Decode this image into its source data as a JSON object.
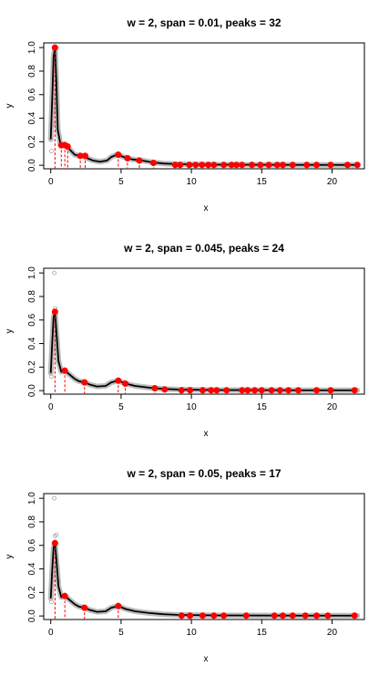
{
  "chart_data": [
    {
      "type": "scatter",
      "title": "w = 2, span = 0.01, peaks = 32",
      "xlabel": "x",
      "ylabel": "y",
      "xlim": [
        -0.5,
        22.3
      ],
      "ylim": [
        -0.03,
        1.04
      ],
      "xticks": [
        0,
        5,
        10,
        15,
        20
      ],
      "yticks": [
        0.0,
        0.2,
        0.4,
        0.6,
        0.8,
        1.0
      ],
      "ytick_labels": [
        "0.0",
        "0.2",
        "0.4",
        "0.6",
        "0.8",
        "1.0"
      ],
      "grid": false,
      "legend": "none",
      "colors": {
        "raw": "#a6a6a6",
        "smooth": "#000000",
        "peaks": "#ff0000"
      },
      "raw_outliers": [
        [
          0.05,
          0.12
        ],
        [
          0.15,
          0.35
        ],
        [
          0.22,
          0.55
        ],
        [
          0.3,
          0.7
        ],
        [
          0.38,
          0.45
        ],
        [
          0.45,
          0.3
        ]
      ],
      "smooth": [
        [
          0.0,
          0.22
        ],
        [
          0.1,
          0.55
        ],
        [
          0.2,
          0.92
        ],
        [
          0.3,
          1.0
        ],
        [
          0.4,
          0.7
        ],
        [
          0.5,
          0.3
        ],
        [
          0.7,
          0.17
        ],
        [
          1.0,
          0.18
        ],
        [
          1.3,
          0.14
        ],
        [
          1.7,
          0.09
        ],
        [
          2.0,
          0.08
        ],
        [
          2.3,
          0.08
        ],
        [
          2.6,
          0.06
        ],
        [
          3.0,
          0.04
        ],
        [
          3.5,
          0.03
        ],
        [
          4.0,
          0.04
        ],
        [
          4.3,
          0.07
        ],
        [
          4.7,
          0.09
        ],
        [
          5.2,
          0.07
        ],
        [
          5.8,
          0.05
        ],
        [
          6.5,
          0.04
        ],
        [
          7.2,
          0.025
        ],
        [
          8.0,
          0.015
        ],
        [
          9.0,
          0.01
        ],
        [
          10.0,
          0.008
        ],
        [
          12.0,
          0.005
        ],
        [
          15.0,
          0.004
        ],
        [
          18.0,
          0.003
        ],
        [
          21.8,
          0.003
        ]
      ],
      "peaks": [
        [
          0.3,
          1.0
        ],
        [
          0.75,
          0.17
        ],
        [
          1.0,
          0.17
        ],
        [
          1.2,
          0.16
        ],
        [
          2.1,
          0.08
        ],
        [
          2.45,
          0.08
        ],
        [
          4.8,
          0.09
        ],
        [
          5.45,
          0.06
        ],
        [
          6.3,
          0.04
        ],
        [
          7.3,
          0.02
        ],
        [
          8.85,
          0.003
        ],
        [
          9.2,
          0.003
        ],
        [
          9.85,
          0.003
        ],
        [
          10.3,
          0.003
        ],
        [
          10.75,
          0.003
        ],
        [
          11.2,
          0.003
        ],
        [
          11.6,
          0.003
        ],
        [
          12.3,
          0.003
        ],
        [
          12.85,
          0.003
        ],
        [
          13.2,
          0.003
        ],
        [
          13.6,
          0.003
        ],
        [
          14.3,
          0.003
        ],
        [
          14.9,
          0.003
        ],
        [
          15.5,
          0.003
        ],
        [
          16.1,
          0.003
        ],
        [
          16.5,
          0.003
        ],
        [
          17.2,
          0.003
        ],
        [
          18.2,
          0.003
        ],
        [
          18.9,
          0.003
        ],
        [
          19.9,
          0.003
        ],
        [
          21.1,
          0.003
        ],
        [
          21.8,
          0.003
        ]
      ]
    },
    {
      "type": "scatter",
      "title": "w = 2, span = 0.045, peaks = 24",
      "xlabel": "x",
      "ylabel": "y",
      "xlim": [
        -0.5,
        22.3
      ],
      "ylim": [
        -0.03,
        1.04
      ],
      "xticks": [
        0,
        5,
        10,
        15,
        20
      ],
      "yticks": [
        0.0,
        0.2,
        0.4,
        0.6,
        0.8,
        1.0
      ],
      "ytick_labels": [
        "0.0",
        "0.2",
        "0.4",
        "0.6",
        "0.8",
        "1.0"
      ],
      "grid": false,
      "legend": "none",
      "colors": {
        "raw": "#a6a6a6",
        "smooth": "#000000",
        "peaks": "#ff0000"
      },
      "raw_outliers": [
        [
          0.05,
          0.12
        ],
        [
          0.15,
          0.35
        ],
        [
          0.25,
          1.0
        ],
        [
          0.32,
          0.7
        ],
        [
          0.4,
          0.45
        ],
        [
          0.5,
          0.25
        ]
      ],
      "smooth": [
        [
          0.0,
          0.15
        ],
        [
          0.1,
          0.4
        ],
        [
          0.2,
          0.62
        ],
        [
          0.3,
          0.67
        ],
        [
          0.4,
          0.5
        ],
        [
          0.55,
          0.25
        ],
        [
          0.75,
          0.16
        ],
        [
          1.0,
          0.17
        ],
        [
          1.3,
          0.14
        ],
        [
          1.7,
          0.1
        ],
        [
          2.0,
          0.08
        ],
        [
          2.4,
          0.07
        ],
        [
          2.8,
          0.05
        ],
        [
          3.3,
          0.035
        ],
        [
          3.9,
          0.04
        ],
        [
          4.3,
          0.07
        ],
        [
          4.8,
          0.085
        ],
        [
          5.3,
          0.06
        ],
        [
          6.0,
          0.04
        ],
        [
          7.0,
          0.025
        ],
        [
          8.0,
          0.015
        ],
        [
          9.0,
          0.01
        ],
        [
          10.0,
          0.008
        ],
        [
          12.0,
          0.005
        ],
        [
          15.0,
          0.004
        ],
        [
          18.0,
          0.003
        ],
        [
          21.8,
          0.003
        ]
      ],
      "peaks": [
        [
          0.3,
          0.67
        ],
        [
          1.0,
          0.17
        ],
        [
          2.4,
          0.07
        ],
        [
          4.8,
          0.085
        ],
        [
          5.3,
          0.06
        ],
        [
          7.4,
          0.02
        ],
        [
          8.1,
          0.01
        ],
        [
          9.3,
          0.003
        ],
        [
          9.9,
          0.003
        ],
        [
          10.8,
          0.003
        ],
        [
          11.4,
          0.003
        ],
        [
          11.8,
          0.003
        ],
        [
          12.5,
          0.003
        ],
        [
          13.6,
          0.003
        ],
        [
          14.0,
          0.003
        ],
        [
          14.5,
          0.003
        ],
        [
          15.0,
          0.003
        ],
        [
          15.7,
          0.003
        ],
        [
          16.3,
          0.003
        ],
        [
          16.9,
          0.003
        ],
        [
          17.6,
          0.003
        ],
        [
          18.9,
          0.003
        ],
        [
          19.9,
          0.003
        ],
        [
          21.6,
          0.003
        ]
      ]
    },
    {
      "type": "scatter",
      "title": "w = 2, span = 0.05, peaks = 17",
      "xlabel": "x",
      "ylabel": "y",
      "xlim": [
        -0.5,
        22.3
      ],
      "ylim": [
        -0.03,
        1.04
      ],
      "xticks": [
        0,
        5,
        10,
        15,
        20
      ],
      "yticks": [
        0.0,
        0.2,
        0.4,
        0.6,
        0.8,
        1.0
      ],
      "ytick_labels": [
        "0.0",
        "0.2",
        "0.4",
        "0.6",
        "0.8",
        "1.0"
      ],
      "grid": false,
      "legend": "none",
      "colors": {
        "raw": "#a6a6a6",
        "smooth": "#000000",
        "peaks": "#ff0000"
      },
      "raw_outliers": [
        [
          0.05,
          0.12
        ],
        [
          0.15,
          0.35
        ],
        [
          0.25,
          1.0
        ],
        [
          0.3,
          0.68
        ],
        [
          0.4,
          0.69
        ],
        [
          0.5,
          0.3
        ]
      ],
      "smooth": [
        [
          0.0,
          0.15
        ],
        [
          0.1,
          0.38
        ],
        [
          0.2,
          0.58
        ],
        [
          0.3,
          0.62
        ],
        [
          0.4,
          0.48
        ],
        [
          0.55,
          0.25
        ],
        [
          0.75,
          0.16
        ],
        [
          1.0,
          0.17
        ],
        [
          1.3,
          0.14
        ],
        [
          1.7,
          0.1
        ],
        [
          2.0,
          0.08
        ],
        [
          2.4,
          0.07
        ],
        [
          2.8,
          0.05
        ],
        [
          3.3,
          0.035
        ],
        [
          3.9,
          0.04
        ],
        [
          4.3,
          0.07
        ],
        [
          4.8,
          0.085
        ],
        [
          5.3,
          0.06
        ],
        [
          6.0,
          0.04
        ],
        [
          7.0,
          0.025
        ],
        [
          8.0,
          0.015
        ],
        [
          9.0,
          0.01
        ],
        [
          10.0,
          0.008
        ],
        [
          12.0,
          0.005
        ],
        [
          15.0,
          0.004
        ],
        [
          18.0,
          0.003
        ],
        [
          21.8,
          0.003
        ]
      ],
      "peaks": [
        [
          0.3,
          0.62
        ],
        [
          1.0,
          0.17
        ],
        [
          2.4,
          0.07
        ],
        [
          4.8,
          0.085
        ],
        [
          9.3,
          0.003
        ],
        [
          9.9,
          0.003
        ],
        [
          10.8,
          0.003
        ],
        [
          11.6,
          0.003
        ],
        [
          12.3,
          0.003
        ],
        [
          13.9,
          0.003
        ],
        [
          15.9,
          0.003
        ],
        [
          16.5,
          0.003
        ],
        [
          17.2,
          0.003
        ],
        [
          18.1,
          0.003
        ],
        [
          18.9,
          0.003
        ],
        [
          19.7,
          0.003
        ],
        [
          21.6,
          0.003
        ]
      ]
    }
  ]
}
